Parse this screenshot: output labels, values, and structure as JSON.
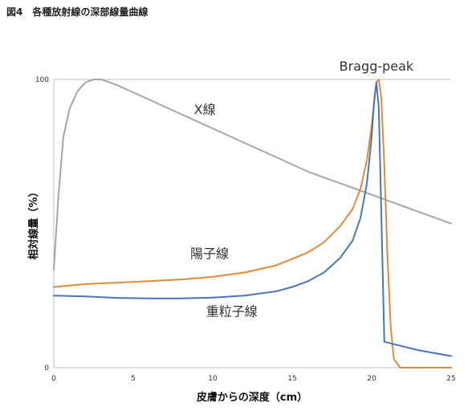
{
  "title": "図4　各種放射線の深部線量曲線",
  "chart_data": {
    "type": "line",
    "xlabel": "皮膚からの深度（cm）",
    "ylabel": "相対線量（%）",
    "xlim": [
      0,
      25
    ],
    "ylim": [
      0,
      100
    ],
    "x_ticks": [
      "0",
      "5",
      "10",
      "15",
      "20",
      "25"
    ],
    "y_ticks": [
      "0",
      "100"
    ],
    "grid": false,
    "annotations": [
      {
        "text": "Bragg-peak",
        "x": 20.3,
        "y": 103
      },
      {
        "text": "X線",
        "x": 9.5,
        "y": 88
      },
      {
        "text": "陽子線",
        "x": 9.8,
        "y": 38
      },
      {
        "text": "重粒子線",
        "x": 11.2,
        "y": 18
      }
    ],
    "series": [
      {
        "name": "X線",
        "color": "#a6a6a6",
        "x": [
          0,
          0.3,
          0.6,
          1.0,
          1.5,
          2.0,
          2.5,
          3.0,
          4,
          6,
          8,
          10,
          12,
          14,
          16,
          18,
          20,
          22,
          24,
          25
        ],
        "y": [
          34,
          60,
          80,
          90,
          96,
          99,
          100,
          100,
          98,
          93,
          88,
          83,
          78,
          73,
          68,
          64,
          60,
          56,
          52,
          50
        ]
      },
      {
        "name": "陽子線",
        "color": "#e08a3c",
        "x": [
          0,
          2,
          4,
          6,
          8,
          10,
          12,
          14,
          16,
          17,
          18,
          18.8,
          19.3,
          19.7,
          20.0,
          20.2,
          20.3,
          20.45,
          20.6,
          20.8,
          21.0,
          21.2,
          21.4,
          21.8,
          25
        ],
        "y": [
          28,
          29,
          29.5,
          30,
          30.6,
          31.5,
          33,
          35.5,
          40,
          43.5,
          49,
          55,
          62,
          72,
          84,
          95,
          99,
          100,
          94,
          70,
          38,
          14,
          3,
          0,
          0
        ]
      },
      {
        "name": "重粒子線",
        "color": "#4a76b8",
        "x": [
          0,
          2,
          4,
          6,
          8,
          10,
          12,
          14,
          15,
          16,
          17,
          18,
          18.8,
          19.3,
          19.7,
          20.0,
          20.15,
          20.3,
          20.45,
          20.6,
          20.8,
          21.5,
          23,
          25
        ],
        "y": [
          25,
          24.7,
          24.2,
          24,
          24,
          24.3,
          25,
          26.5,
          28,
          30,
          33,
          38,
          44,
          52,
          64,
          80,
          92,
          99,
          90,
          55,
          9,
          8,
          6,
          4
        ]
      }
    ]
  }
}
